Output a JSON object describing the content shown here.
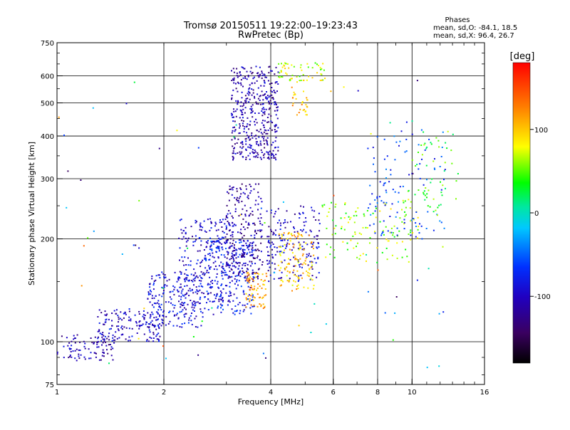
{
  "chart_data": {
    "type": "scatter",
    "title": "Tromsø 20150511 19:22:00–19:23:43",
    "subtitle": "RwPretec (Bp)",
    "xlabel": "Frequency [MHz]",
    "ylabel": "Stationary phase Virtual Height [km]",
    "x_scale": "log",
    "y_scale": "log",
    "xlim": [
      1,
      16
    ],
    "ylim": [
      75,
      750
    ],
    "x_ticks": [
      1,
      2,
      4,
      6,
      8,
      10,
      16
    ],
    "y_ticks": [
      75,
      100,
      200,
      300,
      400,
      500,
      600,
      750
    ],
    "x_grid": [
      2,
      4,
      6,
      8,
      10
    ],
    "y_grid": [
      100,
      200,
      300,
      400,
      500,
      600
    ],
    "grid": true,
    "phases_info": {
      "title": "Phases",
      "line_o": "mean, sd,O: -84.1, 18.5",
      "line_x": "mean, sd,X:  96.4, 26.7"
    },
    "colorbar": {
      "label": "[deg]",
      "range": [
        -180,
        180
      ],
      "ticks": [
        100,
        0,
        -100
      ],
      "tick_labels": [
        "100",
        "0",
        "-100"
      ]
    },
    "point_clusters": [
      {
        "f": [
          1.0,
          1.45
        ],
        "h": [
          88,
          105
        ],
        "phase": -110,
        "n": 90
      },
      {
        "f": [
          1.3,
          2.0
        ],
        "h": [
          100,
          125
        ],
        "phase": -100,
        "n": 160
      },
      {
        "f": [
          1.8,
          2.6
        ],
        "h": [
          110,
          160
        ],
        "phase": -90,
        "n": 200
      },
      {
        "f": [
          2.2,
          3.2
        ],
        "h": [
          130,
          230
        ],
        "phase": -95,
        "n": 260
      },
      {
        "f": [
          2.6,
          3.6
        ],
        "h": [
          120,
          200
        ],
        "phase": -80,
        "n": 220
      },
      {
        "f": [
          3.0,
          3.8
        ],
        "h": [
          150,
          290
        ],
        "phase": -115,
        "n": 230
      },
      {
        "f": [
          3.1,
          4.2
        ],
        "h": [
          340,
          640
        ],
        "phase": -110,
        "n": 420
      },
      {
        "f": [
          3.4,
          3.9
        ],
        "h": [
          125,
          160
        ],
        "phase": 110,
        "n": 70
      },
      {
        "f": [
          3.9,
          5.5
        ],
        "h": [
          150,
          250
        ],
        "phase": -100,
        "n": 180
      },
      {
        "f": [
          4.2,
          5.3
        ],
        "h": [
          140,
          210
        ],
        "phase": 100,
        "n": 120
      },
      {
        "f": [
          4.2,
          5.7
        ],
        "h": [
          580,
          655
        ],
        "phase": 70,
        "n": 60
      },
      {
        "f": [
          4.5,
          5.1
        ],
        "h": [
          460,
          580
        ],
        "phase": 110,
        "n": 30
      },
      {
        "f": [
          5.5,
          10.5
        ],
        "h": [
          170,
          260
        ],
        "phase": 60,
        "n": 120
      },
      {
        "f": [
          7.5,
          12.5
        ],
        "h": [
          200,
          420
        ],
        "phase": -60,
        "n": 110
      },
      {
        "f": [
          9.5,
          13.5
        ],
        "h": [
          230,
          420
        ],
        "phase": 40,
        "n": 60
      },
      {
        "f": [
          1.0,
          13.0
        ],
        "h": [
          80,
          600
        ],
        "phase": 0,
        "n": 80
      }
    ]
  }
}
